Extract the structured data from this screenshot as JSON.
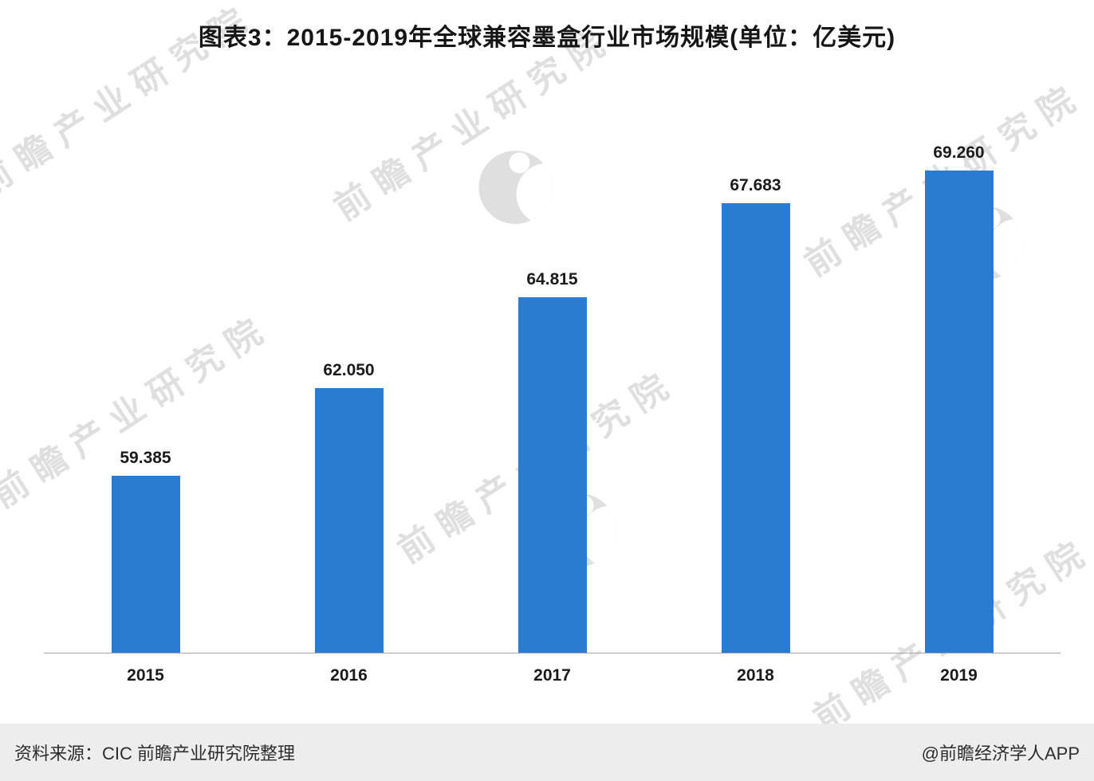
{
  "title": "图表3：2015-2019年全球兼容墨盒行业市场规模(单位：亿美元)",
  "chart_data": {
    "type": "bar",
    "title": "图表3：2015-2019年全球兼容墨盒行业市场规模(单位：亿美元)",
    "categories": [
      "2015",
      "2016",
      "2017",
      "2018",
      "2019"
    ],
    "values": [
      59.385,
      62.05,
      64.815,
      67.683,
      69.26
    ],
    "value_labels": [
      "59.385",
      "62.050",
      "64.815",
      "67.683",
      "69.260"
    ],
    "unit": "亿美元",
    "xlabel": "",
    "ylabel": "",
    "ylim": [
      54,
      69.5
    ],
    "bar_color": "#2a7bd2",
    "grid": false,
    "legend": false
  },
  "watermark": {
    "text": "前瞻产业研究院"
  },
  "footer": {
    "source": "资料来源：CIC 前瞻产业研究院整理",
    "credit": "@前瞻经济学人APP"
  }
}
